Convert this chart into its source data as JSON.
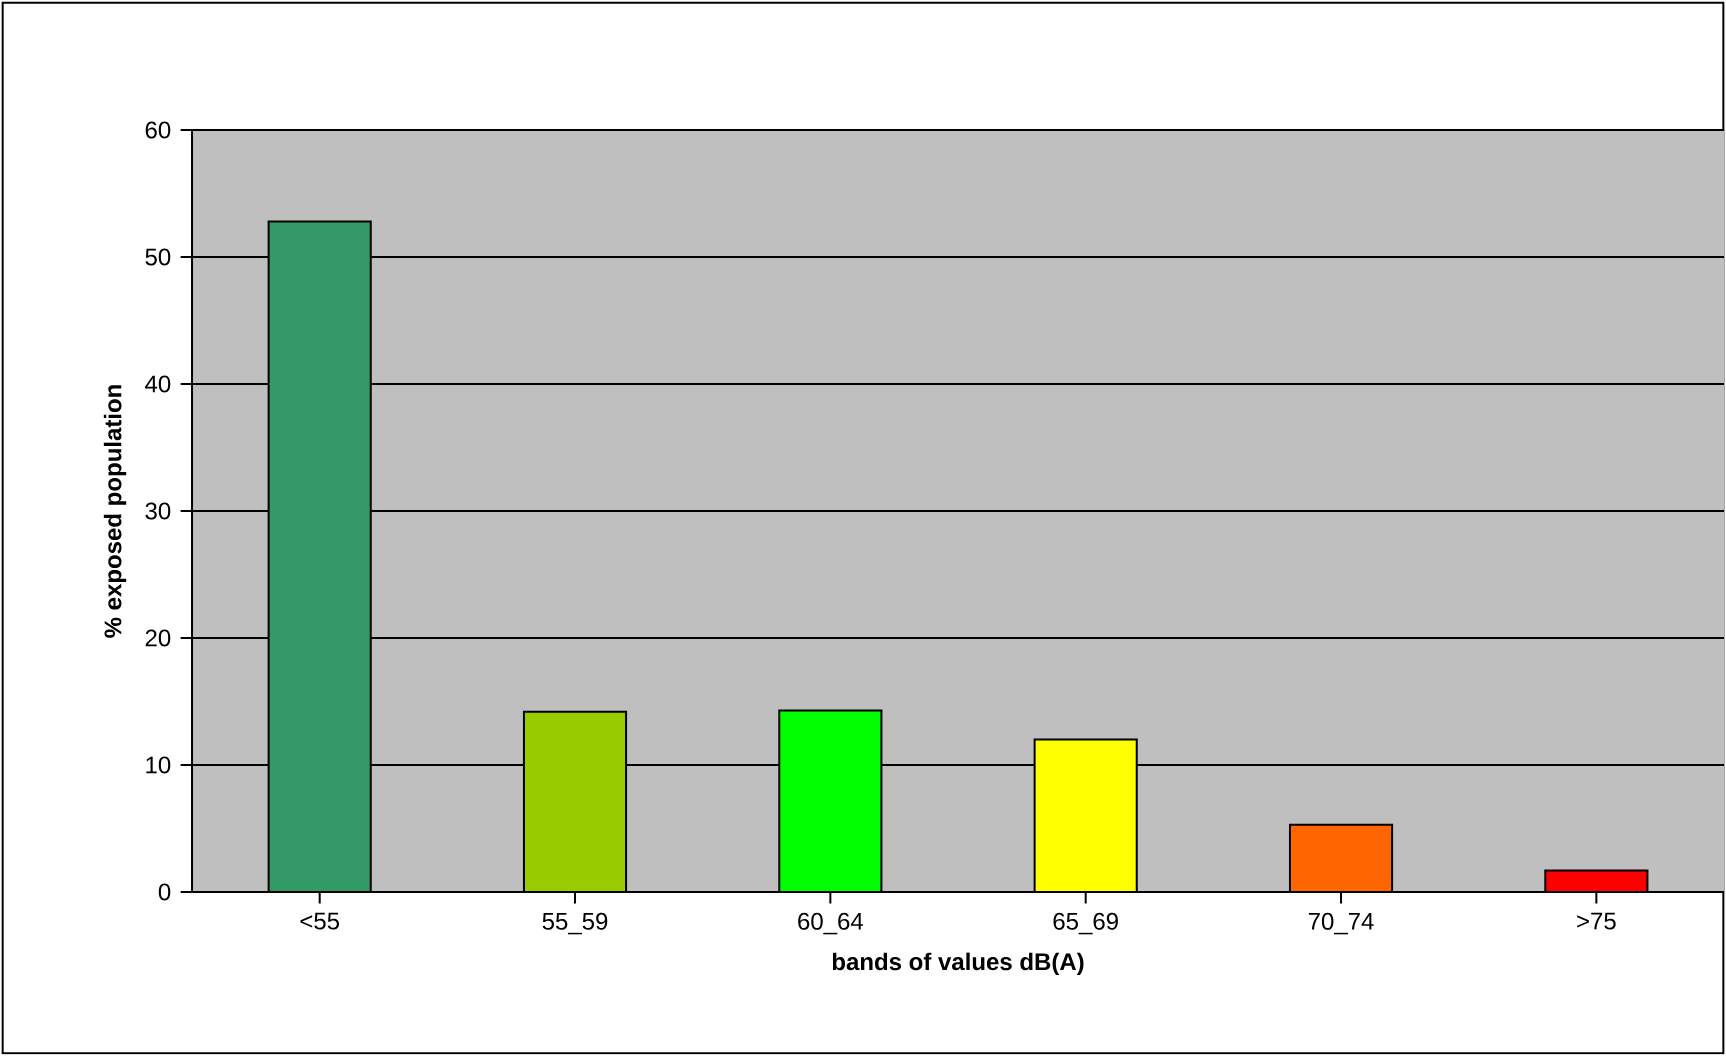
{
  "chart_data": {
    "type": "bar",
    "xlabel": "bands of values dB(A)",
    "ylabel": "% exposed population",
    "categories": [
      "<55",
      "55_59",
      "60_64",
      "65_69",
      "70_74",
      ">75"
    ],
    "values": [
      52.8,
      14.2,
      14.3,
      12.0,
      5.3,
      1.7
    ],
    "colors": [
      "#339966",
      "#99cc00",
      "#00ff00",
      "#ffff00",
      "#ff6600",
      "#ff0000"
    ],
    "ylim": [
      0,
      60
    ],
    "yticks": [
      0,
      10,
      20,
      30,
      40,
      50,
      60
    ],
    "grid": "y"
  }
}
